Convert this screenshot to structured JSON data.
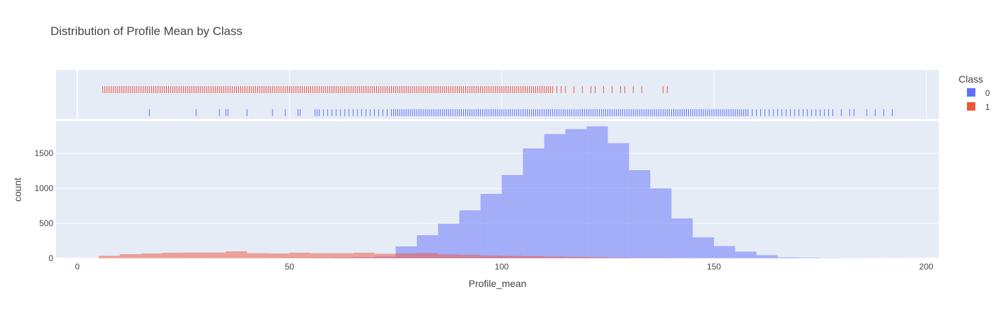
{
  "chart_data": {
    "type": "bar",
    "title": "Distribution of Profile Mean by Class",
    "xlabel": "Profile_mean",
    "ylabel": "count",
    "xlim": [
      -5,
      203
    ],
    "ylim": [
      0,
      1960
    ],
    "x_ticks": [
      0,
      50,
      100,
      150,
      200
    ],
    "y_ticks": [
      0,
      500,
      1000,
      1500
    ],
    "bin_width": 5,
    "legend": {
      "title": "Class",
      "placement": "top-right"
    },
    "grid": true,
    "series": [
      {
        "name": "0",
        "color": "#636efa",
        "bin_starts": [
          10,
          15,
          25,
          30,
          35,
          40,
          45,
          50,
          55,
          60,
          65,
          70,
          75,
          80,
          85,
          90,
          95,
          100,
          105,
          110,
          115,
          120,
          125,
          130,
          135,
          140,
          145,
          150,
          155,
          160,
          165,
          170,
          175,
          180,
          185,
          190
        ],
        "values": [
          1,
          1,
          2,
          1,
          1,
          1,
          2,
          3,
          6,
          10,
          15,
          25,
          170,
          330,
          495,
          685,
          920,
          1190,
          1570,
          1775,
          1845,
          1885,
          1645,
          1260,
          1000,
          570,
          300,
          175,
          95,
          45,
          12,
          8,
          5,
          3,
          2,
          1
        ]
      },
      {
        "name": "1",
        "color": "#ef553b",
        "bin_starts": [
          5,
          10,
          15,
          20,
          25,
          30,
          35,
          40,
          45,
          50,
          55,
          60,
          65,
          70,
          75,
          80,
          85,
          90,
          95,
          100,
          105,
          110,
          115,
          120,
          125,
          130,
          135
        ],
        "values": [
          35,
          60,
          70,
          80,
          82,
          82,
          100,
          72,
          70,
          80,
          72,
          72,
          80,
          65,
          70,
          75,
          55,
          50,
          40,
          35,
          30,
          25,
          20,
          15,
          8,
          3,
          2
        ]
      }
    ],
    "rug": [
      {
        "name": "1",
        "dense_range": [
          6,
          112
        ],
        "points": [
          113,
          114,
          115,
          117,
          119,
          121,
          122,
          124,
          126,
          128,
          129,
          131,
          133,
          138,
          139
        ]
      },
      {
        "name": "0",
        "dense_range": [
          74,
          158
        ],
        "points": [
          17,
          28,
          33.5,
          35,
          35.5,
          40,
          46,
          49,
          52,
          52.5,
          56,
          56.5,
          57,
          58,
          59,
          60,
          61,
          62,
          63,
          64,
          65,
          66,
          67,
          68,
          69,
          70,
          71,
          72,
          73,
          159,
          160,
          161,
          162,
          163,
          164,
          165,
          166,
          167,
          168,
          169,
          170,
          171,
          172,
          173,
          174,
          175,
          176,
          177,
          178,
          180,
          182,
          183,
          186,
          188,
          190,
          192
        ]
      }
    ]
  }
}
